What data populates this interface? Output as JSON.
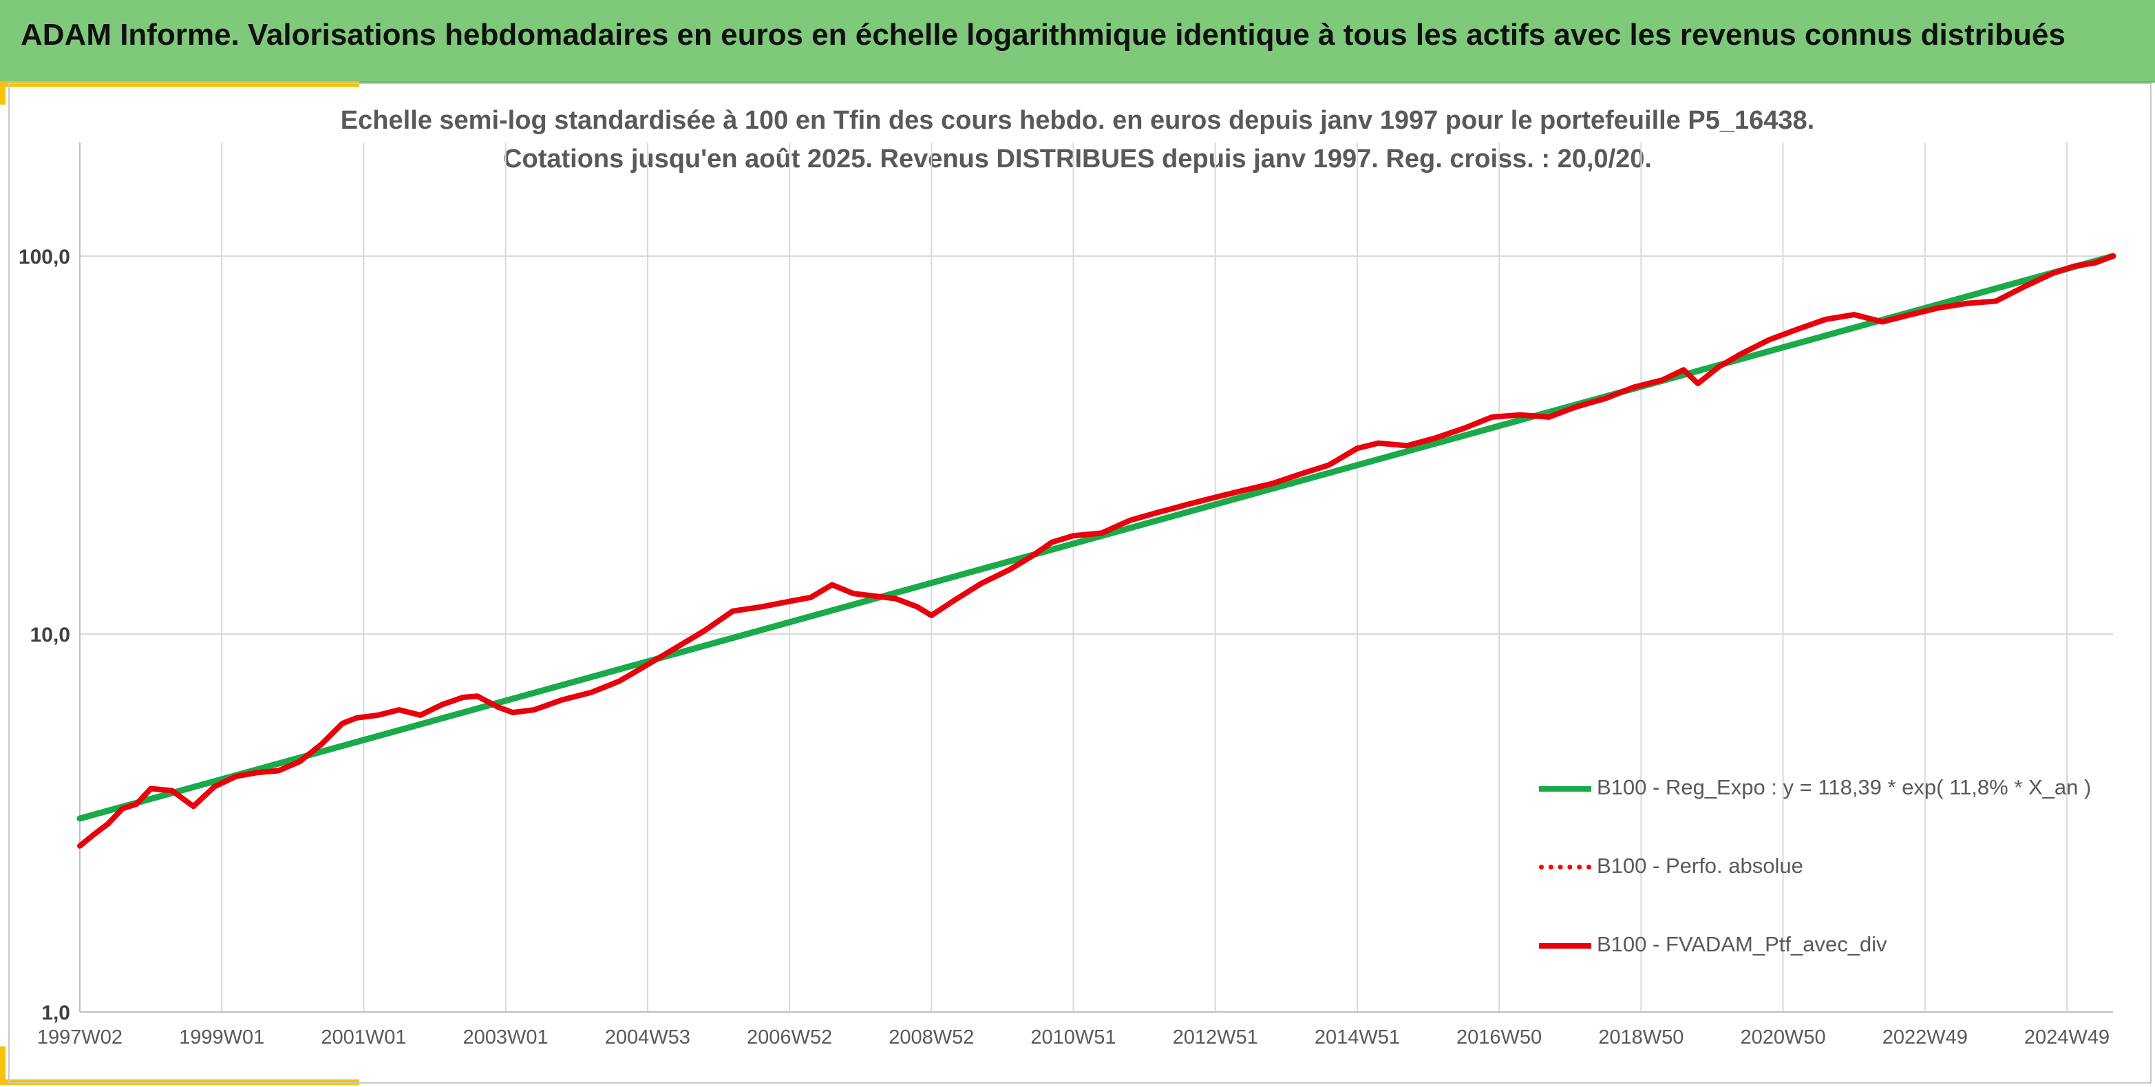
{
  "header": {
    "title": "ADAM Informe. Valorisations hebdomadaires en euros en échelle logarithmique identique à tous les actifs avec les revenus connus distribués"
  },
  "chart_data": {
    "type": "line",
    "title_line1": "Echelle semi-log standardisée à 100 en Tfin des cours hebdo. en euros depuis janv 1997 pour le portefeuille P5_16438.",
    "title_line2": "Cotations jusqu'en août 2025. Revenus DISTRIBUES depuis janv 1997. Reg. croiss. : 20,0/20.",
    "y_scale": "log",
    "ylim": [
      1,
      200
    ],
    "y_ticks": [
      {
        "value": 1,
        "label": "1,0"
      },
      {
        "value": 10,
        "label": "10,0"
      },
      {
        "value": 100,
        "label": "100,0"
      }
    ],
    "xlim": [
      1997.0,
      2025.65
    ],
    "x_ticks": [
      {
        "value": 1997.0,
        "label": "1997W02"
      },
      {
        "value": 1999.0,
        "label": "1999W01"
      },
      {
        "value": 2001.0,
        "label": "2001W01"
      },
      {
        "value": 2003.0,
        "label": "2003W01"
      },
      {
        "value": 2005.0,
        "label": "2004W53"
      },
      {
        "value": 2007.0,
        "label": "2006W52"
      },
      {
        "value": 2009.0,
        "label": "2008W52"
      },
      {
        "value": 2011.0,
        "label": "2010W51"
      },
      {
        "value": 2013.0,
        "label": "2012W51"
      },
      {
        "value": 2015.0,
        "label": "2014W51"
      },
      {
        "value": 2017.0,
        "label": "2016W50"
      },
      {
        "value": 2019.0,
        "label": "2018W50"
      },
      {
        "value": 2021.0,
        "label": "2020W50"
      },
      {
        "value": 2023.0,
        "label": "2022W49"
      },
      {
        "value": 2025.0,
        "label": "2024W49"
      }
    ],
    "grid": "vertical",
    "legend_position": "bottom-right",
    "series": [
      {
        "name": "B100 - Reg_Expo : y = 118,39 * exp( 11,8% *  X_an )",
        "color": "#1aaa4a",
        "style": "solid",
        "x": [
          1997.0,
          2025.65
        ],
        "y": [
          3.25,
          100.0
        ]
      },
      {
        "name": "B100 - Perfo. absolue",
        "color": "#ff0000",
        "style": "dotted",
        "x": [],
        "y": []
      },
      {
        "name": "B100 - FVADAM_Ptf_avec_div",
        "color": "#e8000b",
        "style": "solid",
        "x": [
          1997.0,
          1997.2,
          1997.4,
          1997.6,
          1997.8,
          1998.0,
          1998.3,
          1998.6,
          1998.9,
          1999.2,
          1999.5,
          1999.8,
          2000.1,
          2000.4,
          2000.7,
          2000.9,
          2001.2,
          2001.5,
          2001.8,
          2002.1,
          2002.4,
          2002.6,
          2002.9,
          2003.1,
          2003.4,
          2003.8,
          2004.2,
          2004.6,
          2005.0,
          2005.4,
          2005.8,
          2006.2,
          2006.6,
          2007.0,
          2007.3,
          2007.6,
          2007.9,
          2008.2,
          2008.5,
          2008.8,
          2009.0,
          2009.3,
          2009.7,
          2010.1,
          2010.4,
          2010.7,
          2011.0,
          2011.4,
          2011.8,
          2012.2,
          2012.6,
          2013.0,
          2013.4,
          2013.8,
          2014.2,
          2014.6,
          2015.0,
          2015.3,
          2015.7,
          2016.1,
          2016.5,
          2016.9,
          2017.3,
          2017.7,
          2018.1,
          2018.5,
          2018.9,
          2019.3,
          2019.6,
          2019.8,
          2020.1,
          2020.4,
          2020.8,
          2021.2,
          2021.6,
          2022.0,
          2022.4,
          2022.8,
          2023.2,
          2023.6,
          2024.0,
          2024.4,
          2024.8,
          2025.1,
          2025.4,
          2025.65
        ],
        "y": [
          2.75,
          2.95,
          3.15,
          3.45,
          3.55,
          3.9,
          3.85,
          3.5,
          3.95,
          4.2,
          4.3,
          4.35,
          4.6,
          5.1,
          5.8,
          6.0,
          6.1,
          6.3,
          6.1,
          6.5,
          6.8,
          6.85,
          6.4,
          6.2,
          6.3,
          6.7,
          7.0,
          7.5,
          8.3,
          9.2,
          10.2,
          11.5,
          11.8,
          12.2,
          12.5,
          13.5,
          12.8,
          12.6,
          12.4,
          11.8,
          11.2,
          12.2,
          13.6,
          14.8,
          16.0,
          17.5,
          18.2,
          18.5,
          20.0,
          21.0,
          22.0,
          23.0,
          24.0,
          25.0,
          26.5,
          28.0,
          31.0,
          32.0,
          31.5,
          33.0,
          35.0,
          37.5,
          38.0,
          37.5,
          40.0,
          42.0,
          45.0,
          47.0,
          50.0,
          46.0,
          51.0,
          55.0,
          60.0,
          64.0,
          68.0,
          70.0,
          67.0,
          70.0,
          73.0,
          75.0,
          76.0,
          83.0,
          90.0,
          94.0,
          96.0,
          100.0
        ]
      }
    ]
  }
}
